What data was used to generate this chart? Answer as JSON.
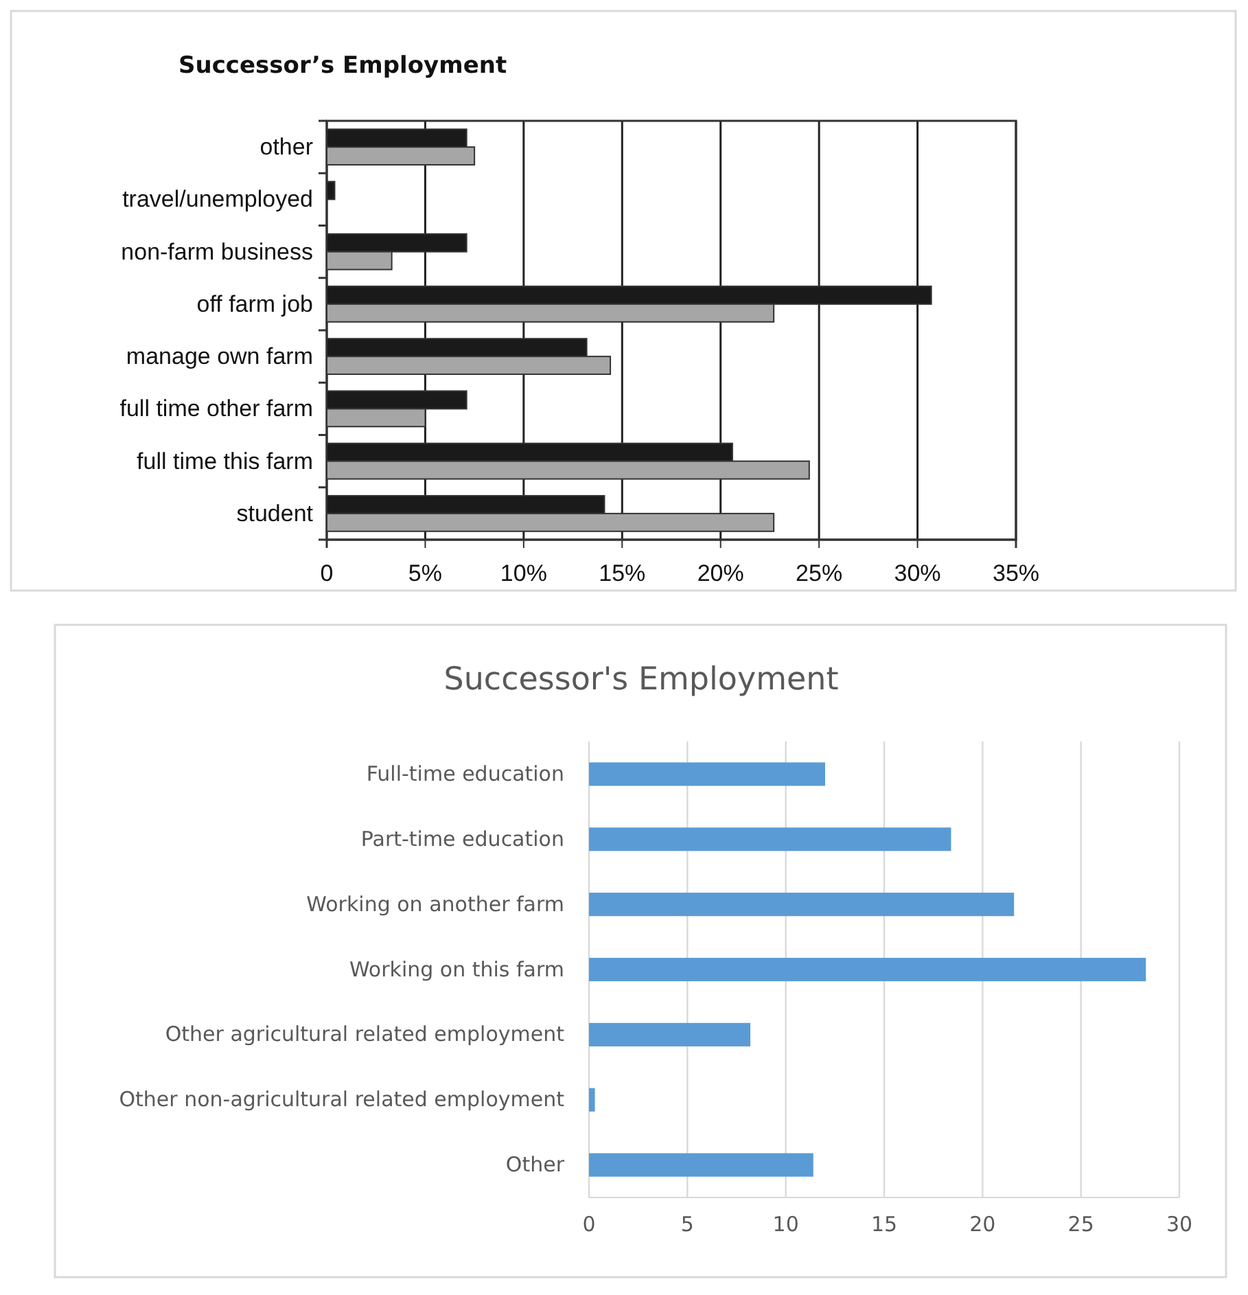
{
  "chart_data": [
    {
      "type": "bar",
      "orientation": "horizontal",
      "title": "Successor’s Employment",
      "categories": [
        "other",
        "travel/unemployed",
        "non-farm business",
        "off farm job",
        "manage own farm",
        "full time other farm",
        "full time this farm",
        "student"
      ],
      "series": [
        {
          "color": "#1a1a1a",
          "values": [
            7.1,
            0.4,
            7.1,
            30.7,
            13.2,
            7.1,
            20.6,
            14.1
          ]
        },
        {
          "color": "#a6a6a6",
          "values": [
            7.5,
            0,
            3.3,
            22.7,
            14.4,
            5.0,
            24.5,
            22.7
          ]
        }
      ],
      "xlim": [
        0,
        35
      ],
      "xticks": [
        0,
        {
          "value": 5,
          "label": "5%"
        },
        {
          "value": 10,
          "label": "10%"
        },
        {
          "value": 15,
          "label": "15%"
        },
        {
          "value": 20,
          "label": "20%"
        },
        {
          "value": 25,
          "label": "25%"
        },
        {
          "value": 30,
          "label": "30%"
        },
        {
          "value": 35,
          "label": "35%"
        }
      ],
      "grid": "x"
    },
    {
      "type": "bar",
      "orientation": "horizontal",
      "title": "Successor's Employment",
      "categories": [
        "Full-time education",
        "Part-time education",
        "Working on another farm",
        "Working on this farm",
        "Other agricultural related employment",
        "Other non-agricultural related employment",
        "Other"
      ],
      "values": [
        12.0,
        18.4,
        21.6,
        28.3,
        8.2,
        0.3,
        11.4
      ],
      "color": "#5b9bd5",
      "xlim": [
        0,
        30
      ],
      "xticks": [
        0,
        5,
        10,
        15,
        20,
        25,
        30
      ],
      "grid": "x"
    }
  ]
}
